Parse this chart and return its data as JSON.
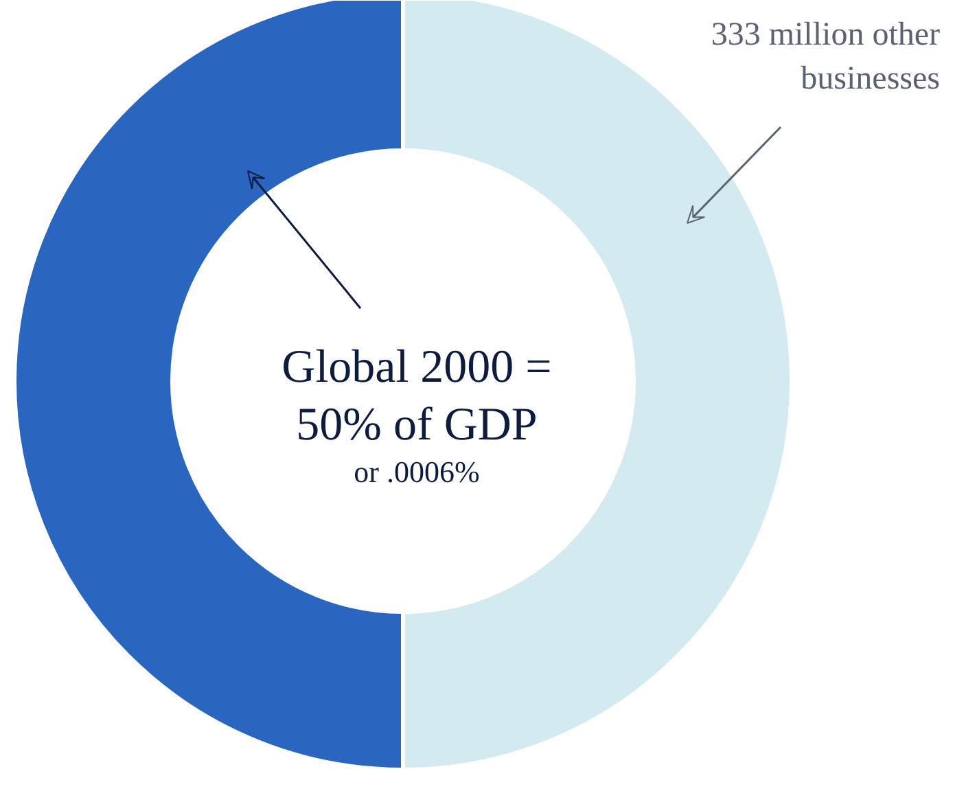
{
  "chart_data": {
    "type": "donut",
    "categories": [
      "333 million other businesses",
      null
    ],
    "values": [
      50,
      50
    ],
    "colors": [
      "#d3eaf1",
      "#2a66c0"
    ],
    "annotations": [
      "Global 2000 = 50% of GDP",
      "or .0006%"
    ]
  }
}
